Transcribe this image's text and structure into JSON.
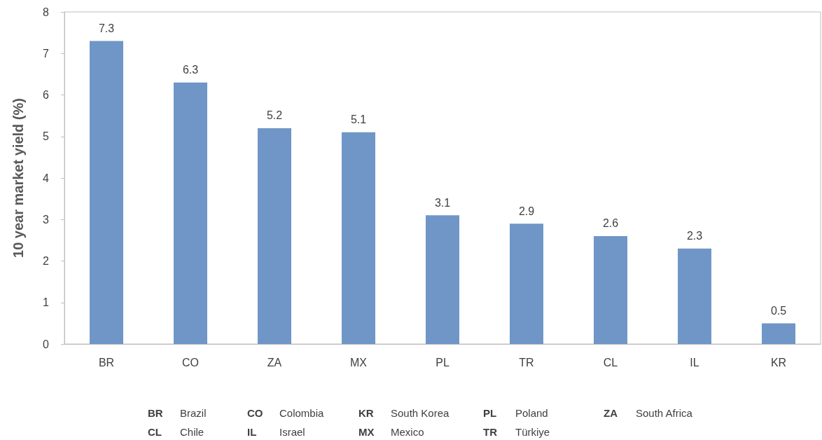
{
  "chart_data": {
    "type": "bar",
    "ylabel": "10 year market yield (%)",
    "categories": [
      "BR",
      "CO",
      "ZA",
      "MX",
      "PL",
      "TR",
      "CL",
      "IL",
      "KR"
    ],
    "values": [
      7.3,
      6.3,
      5.2,
      5.1,
      3.1,
      2.9,
      2.6,
      2.3,
      0.5
    ],
    "color": "#6f96c6",
    "ylim": [
      0,
      8
    ],
    "yticks": [
      0,
      1,
      2,
      3,
      4,
      5,
      6,
      7,
      8
    ],
    "grid": false,
    "data_labels": true,
    "annotations": [
      "BR",
      "Brazil",
      "CO",
      "Colombia",
      "KR",
      "South Korea",
      "PL",
      "Poland",
      "ZA",
      "South Africa",
      "CL",
      "Chile",
      "IL",
      "Israel",
      "MX",
      "Mexico",
      "TR",
      "Türkiye"
    ]
  }
}
